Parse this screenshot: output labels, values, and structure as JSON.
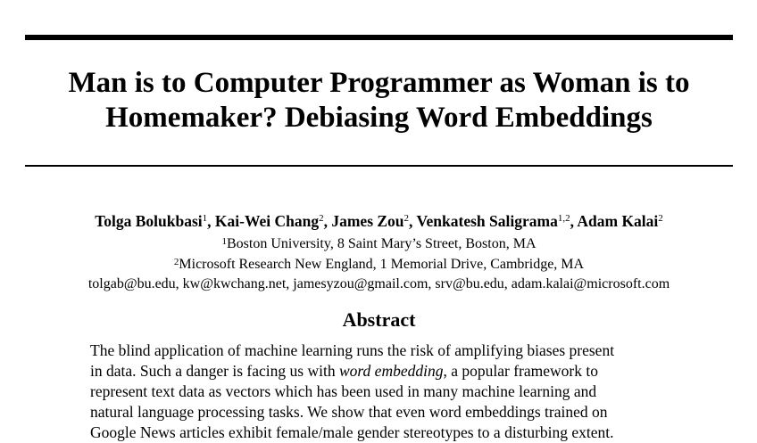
{
  "title": {
    "line1": "Man is to Computer Programmer as Woman is to",
    "line2": "Homemaker? Debiasing Word Embeddings"
  },
  "authors": [
    {
      "name": "Tolga Bolukbasi",
      "aff": "1",
      "sep": ", "
    },
    {
      "name": "Kai-Wei Chang",
      "aff": "2",
      "sep": ", "
    },
    {
      "name": "James Zou",
      "aff": "2",
      "sep": ", "
    },
    {
      "name": "Venkatesh Saligrama",
      "aff": "1,2",
      "sep": ", "
    },
    {
      "name": "Adam Kalai",
      "aff": "2",
      "sep": ""
    }
  ],
  "affiliations": [
    {
      "num": "1",
      "text": "Boston University, 8 Saint Mary’s Street, Boston, MA"
    },
    {
      "num": "2",
      "text": "Microsoft Research New England, 1 Memorial Drive, Cambridge, MA"
    }
  ],
  "emails": "tolgab@bu.edu, kw@kwchang.net, jamesyzou@gmail.com, srv@bu.edu, adam.kalai@microsoft.com",
  "abstract": {
    "heading": "Abstract",
    "line1": "The blind application of machine learning runs the risk of amplifying biases present",
    "line2_pre": "in data. Such a danger is facing us with ",
    "line2_em": "word embedding",
    "line2_post": ", a popular framework to",
    "line3": "represent text data as vectors which has been used in many machine learning and",
    "line4": "natural language processing tasks. We show that even word embeddings trained on",
    "line5": "Google News articles exhibit female/male gender stereotypes to a disturbing extent."
  }
}
